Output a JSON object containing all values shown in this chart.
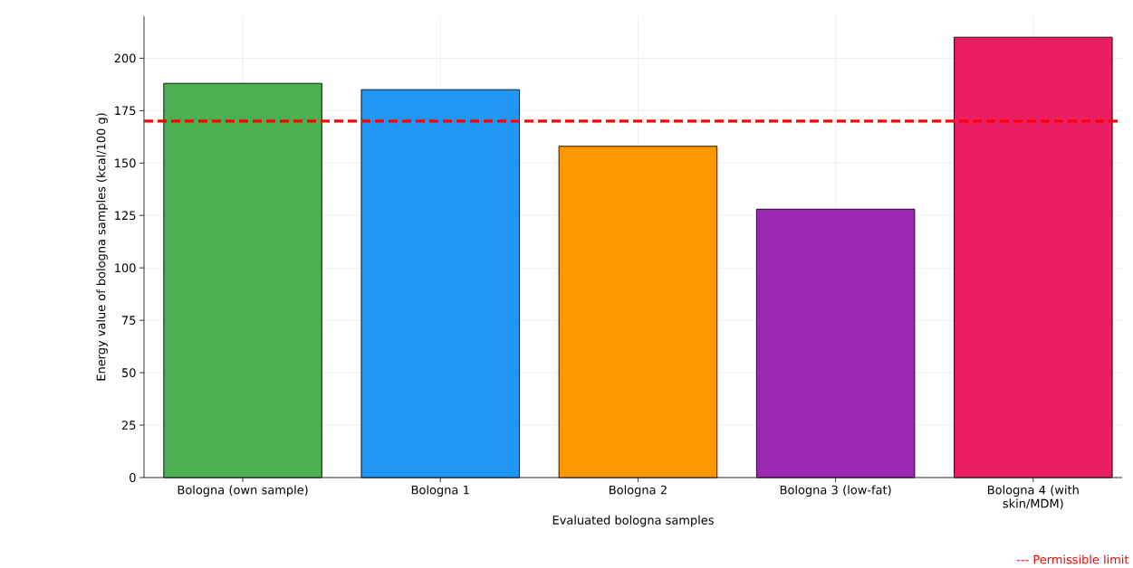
{
  "chart_data": {
    "type": "bar",
    "xlabel": "Evaluated bologna samples",
    "ylabel": "Energy value of bologna samples (kcal/100 g)",
    "categories": [
      "Bologna (own sample)",
      "Bologna 1",
      "Bologna 2",
      "Bologna 3 (low-fat)",
      "Bologna 4 (with skin/MDM)"
    ],
    "values": [
      188,
      185,
      158,
      128,
      210
    ],
    "colors": [
      "#4caf50",
      "#2196f3",
      "#ff9800",
      "#9c27b0",
      "#e91e63"
    ],
    "ylim": [
      0,
      220
    ],
    "yticks": [
      0,
      25,
      50,
      75,
      100,
      125,
      150,
      175,
      200
    ],
    "grid": true,
    "ref_lines": [
      {
        "axis": "y",
        "value": 170,
        "color": "#ff0000",
        "line_style": "dashed"
      }
    ],
    "annotations": [
      "--- Permissible limit"
    ]
  }
}
